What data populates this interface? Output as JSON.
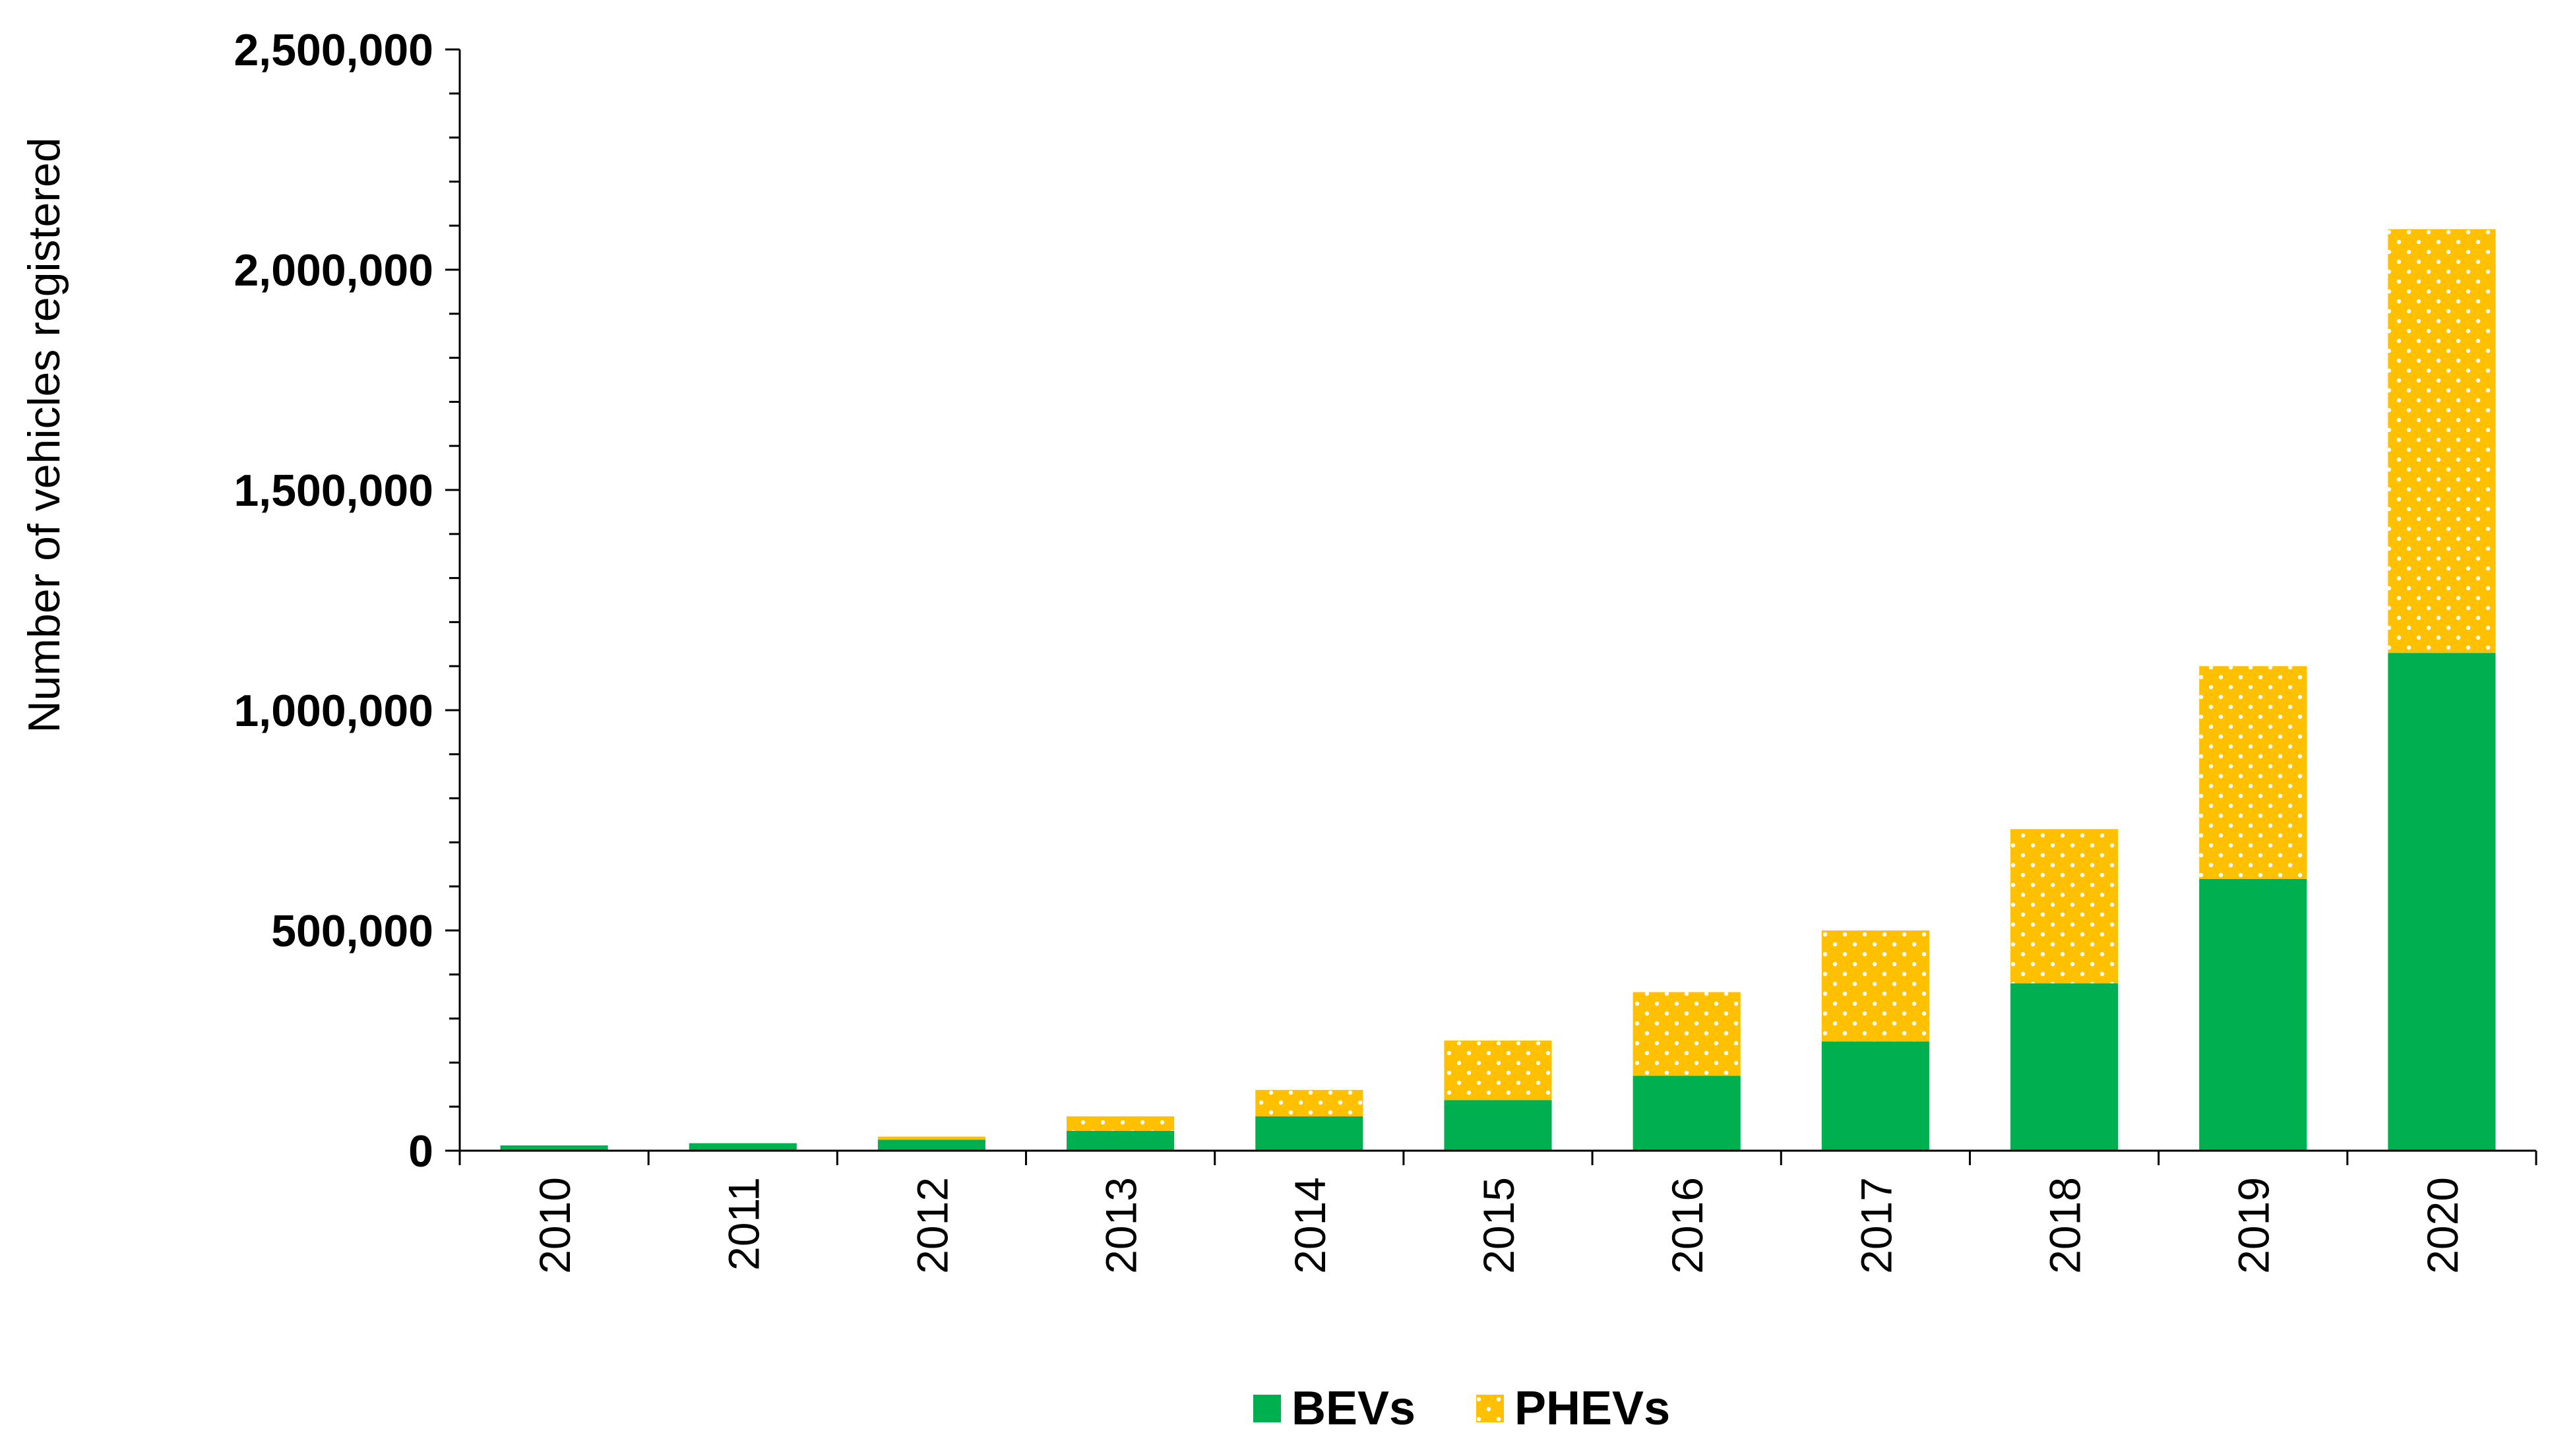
{
  "chart_data": {
    "type": "bar",
    "stacked": true,
    "categories": [
      "2010",
      "2011",
      "2012",
      "2013",
      "2014",
      "2015",
      "2016",
      "2017",
      "2018",
      "2019",
      "2020"
    ],
    "series": [
      {
        "name": "BEVs",
        "color": "#00b050",
        "values": [
          12000,
          17000,
          25000,
          45000,
          78000,
          115000,
          170000,
          248000,
          380000,
          617000,
          1130000
        ]
      },
      {
        "name": "PHEVs",
        "color": "#ffc000",
        "pattern": "dots",
        "values": [
          0,
          0,
          7000,
          33000,
          60000,
          135000,
          190000,
          252000,
          350000,
          483000,
          962000
        ]
      }
    ],
    "title": "",
    "xlabel": "",
    "ylabel": "Number of vehicles registered",
    "ylim": [
      0,
      2500000
    ],
    "yticks": [
      0,
      500000,
      1000000,
      1500000,
      2000000,
      2500000
    ],
    "ytick_labels": [
      "0",
      "500,000",
      "1,000,000",
      "1,500,000",
      "2,000,000",
      "2,500,000"
    ],
    "grid": false,
    "legend": "bottom"
  }
}
